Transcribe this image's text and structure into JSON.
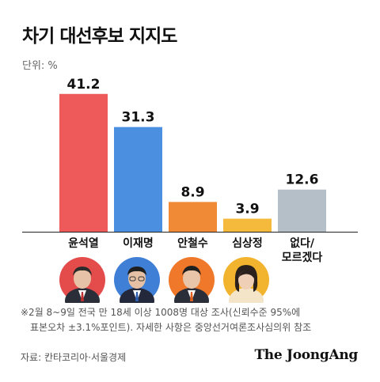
{
  "title": "차기 대선후보 지지도",
  "unit": "단위: %",
  "footnote_line1": "※2월 8~9일 전국 만 18세 이상 1008명 대상 조사(신뢰수준 95%에",
  "footnote_line2": "표본오차 ±3.1%포인트). 자세한 사항은 중앙선거여론조사심의위 참조",
  "source": "자료: 칸타코리아·서울경제",
  "brand": "The JoongAng",
  "chart_data": {
    "type": "bar",
    "categories": [
      "윤석열",
      "이재명",
      "안철수",
      "심상정",
      "없다/모르겠다"
    ],
    "category_lines": [
      [
        "윤석열"
      ],
      [
        "이재명"
      ],
      [
        "안철수"
      ],
      [
        "심상정"
      ],
      [
        "없다/",
        "모르겠다"
      ]
    ],
    "values": [
      41.2,
      31.3,
      8.9,
      3.9,
      12.6
    ],
    "value_labels": [
      "41.2",
      "31.3",
      "8.9",
      "3.9",
      "12.6"
    ],
    "colors": [
      "#ee5a5a",
      "#4b8fe0",
      "#f08a37",
      "#f5b93c",
      "#b4bfc8"
    ],
    "ylim": [
      0,
      45
    ],
    "title": "차기 대선후보 지지도",
    "ylabel": "단위: %"
  },
  "photos": [
    {
      "name": "윤석열",
      "bg": "#e44c4c"
    },
    {
      "name": "이재명",
      "bg": "#3f7fd6"
    },
    {
      "name": "안철수",
      "bg": "#f0782a"
    },
    {
      "name": "심상정",
      "bg": "#f2b32e"
    }
  ]
}
